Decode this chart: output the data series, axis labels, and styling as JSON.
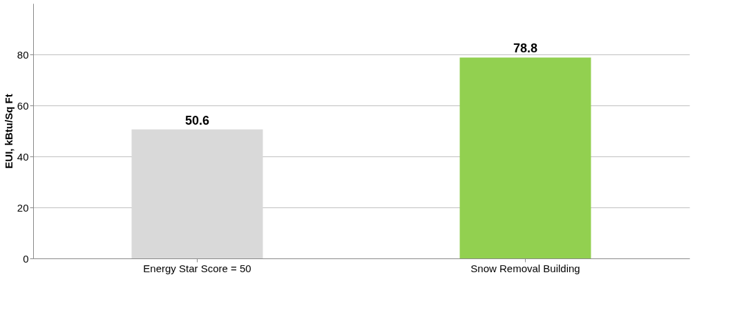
{
  "chart_data": {
    "type": "bar",
    "ylabel": "EUI, kBtu/Sq Ft",
    "categories": [
      "Energy Star Score = 50",
      "Snow Removal Building"
    ],
    "values": [
      50.6,
      78.8
    ],
    "colors": [
      "#d9d9d9",
      "#92d050"
    ],
    "ylim": [
      0,
      100
    ],
    "yticks": [
      0,
      20,
      40,
      60,
      80
    ],
    "grid": "y",
    "data_labels": true
  }
}
